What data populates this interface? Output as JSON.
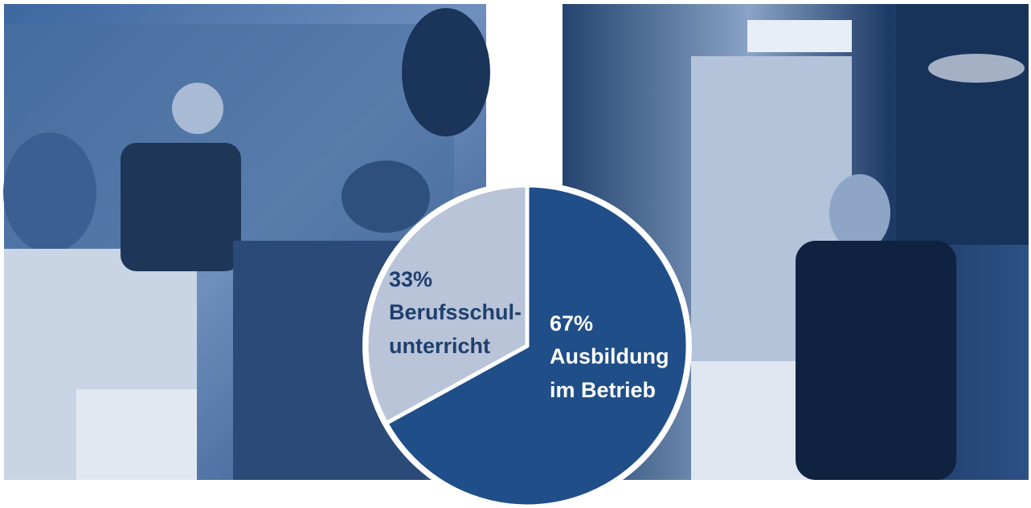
{
  "chart_data": {
    "type": "pie",
    "categories": [
      [
        "Ausbildung",
        "im Betrieb"
      ],
      [
        "Berufsschul-",
        "unterricht"
      ]
    ],
    "values": [
      67,
      33
    ],
    "value_labels": [
      "67%",
      "33%"
    ],
    "colors": [
      "#1f4e89",
      "#b9c4d8"
    ],
    "label_colors": [
      "#ffffff",
      "#1f3f6e"
    ]
  }
}
